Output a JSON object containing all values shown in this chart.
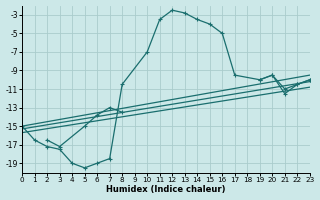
{
  "xlabel": "Humidex (Indice chaleur)",
  "bg_color": "#cce8e8",
  "line_color": "#1a6e6e",
  "grid_color": "#aacccc",
  "xlim": [
    0,
    23
  ],
  "ylim": [
    -20,
    -2
  ],
  "xticks": [
    0,
    1,
    2,
    3,
    4,
    5,
    6,
    7,
    8,
    9,
    10,
    11,
    12,
    13,
    14,
    15,
    16,
    17,
    18,
    19,
    20,
    21,
    22,
    23
  ],
  "yticks": [
    -19,
    -17,
    -15,
    -13,
    -11,
    -9,
    -7,
    -5,
    -3
  ],
  "main_x": [
    0,
    1,
    2,
    3,
    4,
    5,
    6,
    7,
    8,
    10,
    11,
    12,
    13,
    14,
    15,
    16,
    17,
    19,
    20,
    21,
    22,
    23
  ],
  "main_y": [
    -15,
    -16.5,
    -17.2,
    -17.5,
    -19,
    -19.5,
    -19,
    -18.5,
    -10.5,
    -7,
    -3.5,
    -2.5,
    -2.8,
    -3.5,
    -4,
    -5,
    -9.5,
    -10,
    -9.5,
    -11,
    -10.5,
    -10
  ],
  "line1_x": [
    0,
    23
  ],
  "line1_y": [
    -15,
    -9.5
  ],
  "line2_x": [
    0,
    23
  ],
  "line2_y": [
    -15.3,
    -10.2
  ],
  "line3_x": [
    0,
    23
  ],
  "line3_y": [
    -15.7,
    -10.8
  ],
  "seg1_x": [
    2,
    3,
    5,
    6,
    7,
    8
  ],
  "seg1_y": [
    -16.5,
    -17.2,
    -15,
    -13.8,
    -13,
    -13.5
  ],
  "seg2_x": [
    19,
    20,
    21,
    22,
    23
  ],
  "seg2_y": [
    -10,
    -9.5,
    -11.5,
    -10.5,
    -10
  ]
}
